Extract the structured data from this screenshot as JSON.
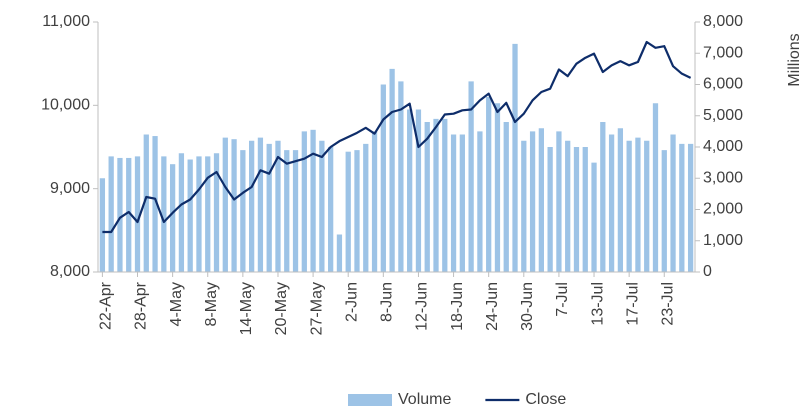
{
  "chart_data": {
    "type": "combo",
    "categories": [
      "22-Apr",
      null,
      null,
      null,
      "28-Apr",
      null,
      null,
      null,
      "4-May",
      null,
      null,
      null,
      "8-May",
      null,
      null,
      null,
      "14-May",
      null,
      null,
      null,
      "20-May",
      null,
      null,
      null,
      "27-May",
      null,
      null,
      null,
      "2-Jun",
      null,
      null,
      null,
      "8-Jun",
      null,
      null,
      null,
      "12-Jun",
      null,
      null,
      null,
      "18-Jun",
      null,
      null,
      null,
      "24-Jun",
      null,
      null,
      null,
      "30-Jun",
      null,
      null,
      null,
      "7-Jul",
      null,
      null,
      null,
      "13-Jul",
      null,
      null,
      null,
      "17-Jul",
      null,
      null,
      null,
      "23-Jul",
      null,
      null,
      null
    ],
    "series": [
      {
        "name": "Volume",
        "type": "bar",
        "axis": "y2",
        "color": "#9dc3e6",
        "values": [
          3000,
          3700,
          3650,
          3650,
          3700,
          4400,
          4350,
          3700,
          3450,
          3800,
          3600,
          3700,
          3700,
          3800,
          4300,
          4250,
          3900,
          4200,
          4300,
          4100,
          4200,
          3900,
          3900,
          4500,
          4550,
          4200,
          4000,
          1200,
          3850,
          3900,
          4100,
          4500,
          6000,
          6500,
          6100,
          5200,
          5200,
          4800,
          4900,
          4900,
          4400,
          4400,
          6100,
          4500,
          5600,
          5400,
          4800,
          7300,
          4200,
          4500,
          4600,
          4000,
          4500,
          4200,
          4000,
          4000,
          3500,
          4800,
          4400,
          4600,
          4200,
          4300,
          4200,
          5400,
          3900,
          4400,
          4100,
          4100
        ]
      },
      {
        "name": "Close",
        "type": "line",
        "color": "#0e2d6a",
        "values": [
          8480,
          8480,
          8650,
          8720,
          8600,
          8900,
          8880,
          8600,
          8710,
          8810,
          8870,
          8990,
          9130,
          9200,
          9020,
          8870,
          8950,
          9020,
          9220,
          9180,
          9380,
          9300,
          9330,
          9360,
          9420,
          9380,
          9500,
          9570,
          9620,
          9670,
          9730,
          9660,
          9830,
          9920,
          9950,
          10020,
          9500,
          9600,
          9740,
          9890,
          9900,
          9940,
          9950,
          10060,
          10140,
          9920,
          10030,
          9800,
          9900,
          10060,
          10160,
          10200,
          10430,
          10350,
          10500,
          10570,
          10620,
          10400,
          10480,
          10530,
          10480,
          10520,
          10760,
          10690,
          10710,
          10470,
          10380,
          10330
        ]
      }
    ],
    "ylim": [
      8000,
      11000
    ],
    "yticks": [
      {
        "value": 8000,
        "label": "8,000"
      },
      {
        "value": 9000,
        "label": "9,000"
      },
      {
        "value": 10000,
        "label": "10,000"
      },
      {
        "value": 11000,
        "label": "11,000"
      }
    ],
    "y2lim": [
      0,
      8000
    ],
    "y2ticks": [
      0,
      {
        "value": 1000,
        "label": "1,000"
      },
      {
        "value": 2000,
        "label": "2,000"
      },
      {
        "value": 3000,
        "label": "3,000"
      },
      {
        "value": 4000,
        "label": "4,000"
      },
      {
        "value": 5000,
        "label": "5,000"
      },
      {
        "value": 6000,
        "label": "6,000"
      },
      {
        "value": 7000,
        "label": "7,000"
      },
      {
        "value": 8000,
        "label": "8,000"
      }
    ],
    "y2label": "Millions",
    "legend": "bottom"
  }
}
